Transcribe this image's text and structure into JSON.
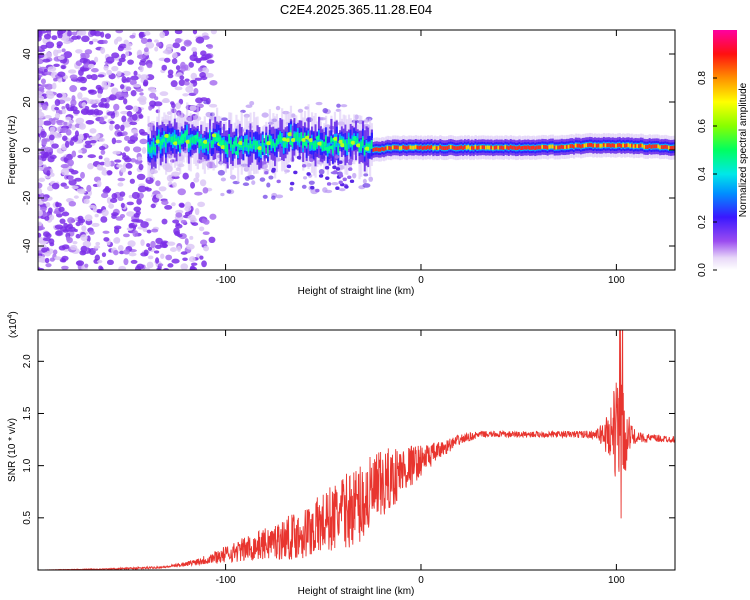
{
  "title": "C2E4.2025.365.11.28.E04",
  "chart_data": [
    {
      "type": "heatmap",
      "xlabel": "Height of straight line (km)",
      "ylabel": "Frequency (Hz)",
      "xlim": [
        -196,
        130
      ],
      "ylim": [
        -50,
        50
      ],
      "x_ticks": [
        -100,
        0,
        100
      ],
      "x_tick_labels": [
        "-100",
        "0",
        "100"
      ],
      "y_ticks": [
        -40,
        -20,
        0,
        20,
        40
      ],
      "y_tick_labels": [
        "-40",
        "-20",
        "0",
        "20",
        "40"
      ],
      "colorbar": {
        "label": "Normalized spectral amplitude",
        "range": [
          0,
          1
        ],
        "ticks": [
          0.0,
          0.2,
          0.4,
          0.6,
          0.8
        ],
        "tick_labels": [
          "0.0",
          "0.2",
          "0.4",
          "0.6",
          "0.8"
        ]
      },
      "band_centre_hz": [
        [
          -136,
          4
        ],
        [
          -120,
          5
        ],
        [
          -105,
          3
        ],
        [
          -95,
          2
        ],
        [
          -85,
          1
        ],
        [
          -75,
          3
        ],
        [
          -65,
          5
        ],
        [
          -55,
          3
        ],
        [
          -45,
          2
        ],
        [
          -35,
          3
        ],
        [
          -25,
          0
        ],
        [
          -15,
          1
        ],
        [
          0,
          1
        ],
        [
          20,
          1
        ],
        [
          60,
          1
        ],
        [
          90,
          2
        ],
        [
          100,
          2
        ],
        [
          130,
          1
        ]
      ]
    },
    {
      "type": "line",
      "xlabel": "Height of straight line (km)",
      "ylabel": "SNR (10 * v/v)",
      "y_scale_label_base": "(x10",
      "y_scale_label_exp": "4",
      "y_scale_label_end": ")",
      "xlim": [
        -196,
        130
      ],
      "ylim": [
        0,
        2.3
      ],
      "x_ticks": [
        -100,
        0,
        100
      ],
      "x_tick_labels": [
        "-100",
        "0",
        "100"
      ],
      "y_ticks": [
        0.5,
        1.0,
        1.5,
        2.0
      ],
      "y_tick_labels": [
        "0.5",
        "1.0",
        "1.5",
        "2.0"
      ],
      "series": [
        {
          "name": "SNR",
          "color": "#e8352f",
          "x": [
            -196,
            -160,
            -140,
            -130,
            -120,
            -110,
            -100,
            -90,
            -80,
            -70,
            -60,
            -50,
            -40,
            -30,
            -20,
            -10,
            0,
            10,
            20,
            30,
            50,
            70,
            90,
            95,
            100,
            102,
            104,
            106,
            110,
            130
          ],
          "y": [
            0.0,
            0.01,
            0.02,
            0.03,
            0.06,
            0.1,
            0.15,
            0.2,
            0.25,
            0.3,
            0.35,
            0.45,
            0.55,
            0.65,
            0.8,
            0.95,
            1.05,
            1.15,
            1.25,
            1.3,
            1.3,
            1.3,
            1.3,
            1.3,
            1.35,
            1.35,
            1.25,
            1.3,
            1.27,
            1.25
          ],
          "noise": [
            0.0,
            0.005,
            0.01,
            0.01,
            0.02,
            0.05,
            0.08,
            0.12,
            0.15,
            0.2,
            0.25,
            0.3,
            0.35,
            0.4,
            0.35,
            0.25,
            0.15,
            0.08,
            0.05,
            0.03,
            0.03,
            0.03,
            0.04,
            0.2,
            0.5,
            0.5,
            0.4,
            0.2,
            0.05,
            0.03
          ]
        }
      ]
    }
  ],
  "colors": {
    "line": "#e8352f",
    "axis": "#000000",
    "background": "#ffffff"
  }
}
